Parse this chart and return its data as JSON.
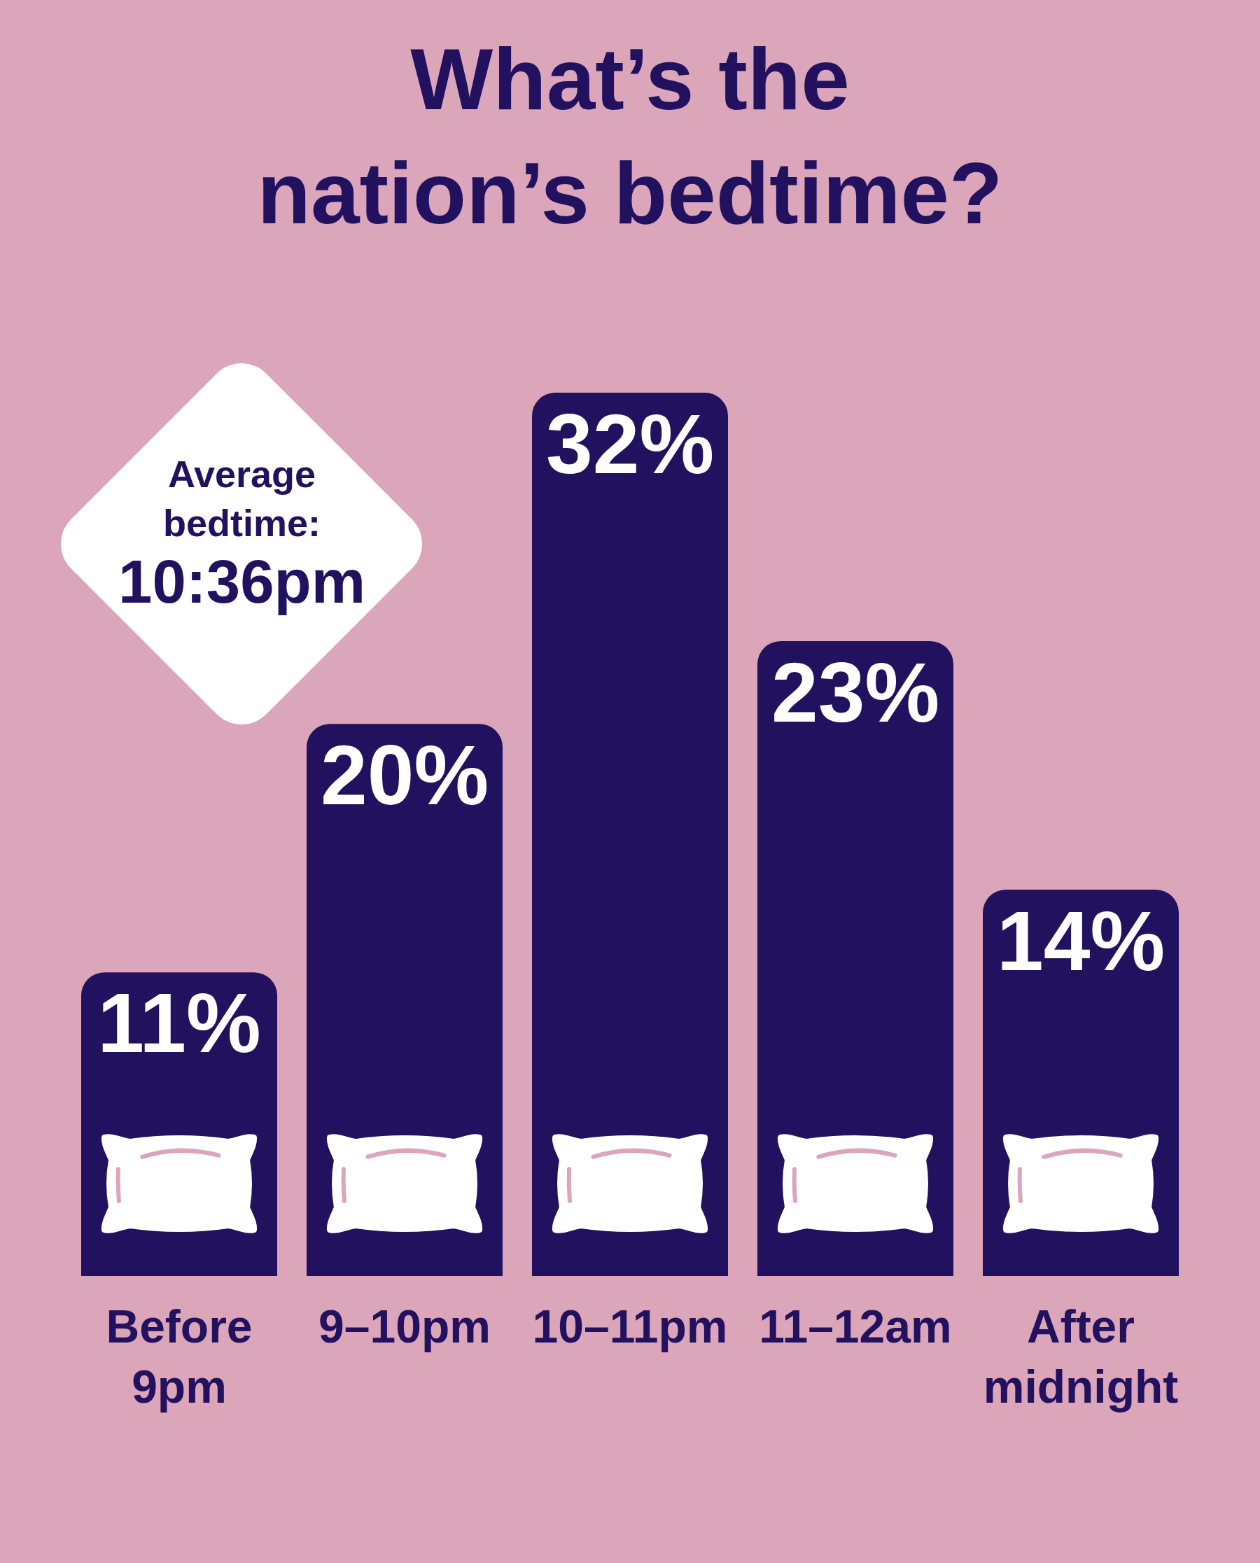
{
  "chart_data": {
    "type": "bar",
    "title": "What’s the nation’s bedtime?",
    "categories": [
      "Before 9pm",
      "9–10pm",
      "10–11pm",
      "11–12am",
      "After midnight"
    ],
    "values": [
      11,
      20,
      32,
      23,
      14
    ],
    "color": "#22115e",
    "value_labels": [
      "11%",
      "20%",
      "32%",
      "23%",
      "14%"
    ],
    "annotations": [
      "Average bedtime:",
      "10:36pm"
    ],
    "tick_labels": "x"
  }
}
